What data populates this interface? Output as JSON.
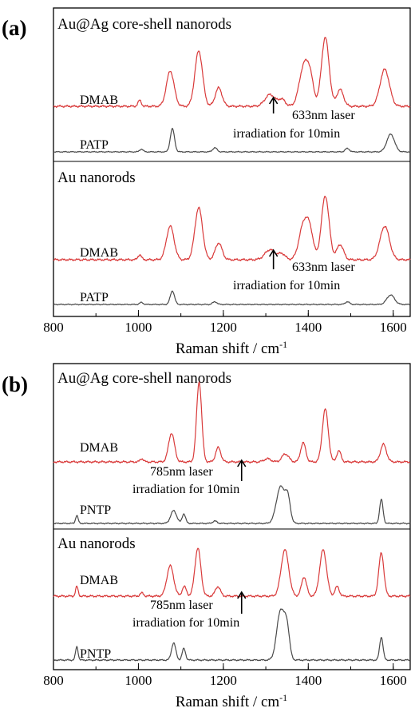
{
  "colors": {
    "dmab": "#d93a3a",
    "reference": "#4a4a4a",
    "axes": "#000000"
  },
  "chart_data": [
    {
      "type": "line",
      "panel_label": "(a)",
      "xlabel": "Raman shift / cm",
      "xlabel_sup": "-1",
      "xlim": [
        800,
        1640
      ],
      "x_ticks": [
        800,
        1000,
        1200,
        1400,
        1600
      ],
      "x_tick_labels": [
        "800",
        "1000",
        "1200",
        "1400",
        "1600"
      ],
      "grid": false,
      "subplots": [
        {
          "title": "Au@Ag core-shell nanorods",
          "series": [
            {
              "name": "DMAB",
              "role": "dmab",
              "peaks": [
                [
                  1003,
                  7,
                  4
                ],
                [
                  1075,
                  42,
                  9
                ],
                [
                  1142,
                  66,
                  9
                ],
                [
                  1189,
                  22,
                  8
                ],
                [
                  1310,
                  14,
                  12
                ],
                [
                  1338,
                  8,
                  8
                ],
                [
                  1390,
                  48,
                  11
                ],
                [
                  1405,
                  26,
                  8
                ],
                [
                  1440,
                  82,
                  9
                ],
                [
                  1475,
                  20,
                  8
                ],
                [
                  1580,
                  44,
                  11
                ]
              ]
            },
            {
              "name": "PATP",
              "role": "reference",
              "peaks": [
                [
                  1007,
                  4,
                  4
                ],
                [
                  1080,
                  34,
                  5
                ],
                [
                  1180,
                  6,
                  5
                ],
                [
                  1492,
                  5,
                  5
                ],
                [
                  1594,
                  26,
                  9
                ]
              ]
            }
          ],
          "annotation": {
            "lines": [
              "633nm laser",
              "irradiation for 10min"
            ],
            "arrow_x": 1318
          }
        },
        {
          "title": "Au nanorods",
          "series": [
            {
              "name": "DMAB",
              "role": "dmab",
              "peaks": [
                [
                  1003,
                  6,
                  4
                ],
                [
                  1075,
                  40,
                  9
                ],
                [
                  1142,
                  62,
                  9
                ],
                [
                  1189,
                  20,
                  8
                ],
                [
                  1310,
                  12,
                  12
                ],
                [
                  1338,
                  7,
                  8
                ],
                [
                  1390,
                  44,
                  11
                ],
                [
                  1405,
                  24,
                  8
                ],
                [
                  1440,
                  76,
                  9
                ],
                [
                  1475,
                  18,
                  8
                ],
                [
                  1580,
                  40,
                  11
                ]
              ]
            },
            {
              "name": "PATP",
              "role": "reference",
              "peaks": [
                [
                  1007,
                  3,
                  4
                ],
                [
                  1080,
                  20,
                  5
                ],
                [
                  1180,
                  4,
                  5
                ],
                [
                  1492,
                  4,
                  5
                ],
                [
                  1594,
                  14,
                  9
                ]
              ]
            }
          ],
          "annotation": {
            "lines": [
              "633nm laser",
              "irradiation for 10min"
            ],
            "arrow_x": 1318
          }
        }
      ]
    },
    {
      "type": "line",
      "panel_label": "(b)",
      "xlabel": "Raman shift / cm",
      "xlabel_sup": "-1",
      "xlim": [
        800,
        1640
      ],
      "x_ticks": [
        800,
        1000,
        1200,
        1400,
        1600
      ],
      "x_tick_labels": [
        "800",
        "1000",
        "1200",
        "1400",
        "1600"
      ],
      "grid": false,
      "subplots": [
        {
          "title": "Au@Ag core-shell nanorods",
          "series": [
            {
              "name": "DMAB",
              "role": "dmab",
              "peaks": [
                [
                  1008,
                  4,
                  4
                ],
                [
                  1078,
                  36,
                  7
                ],
                [
                  1143,
                  100,
                  6
                ],
                [
                  1188,
                  18,
                  6
                ],
                [
                  1304,
                  4,
                  8
                ],
                [
                  1346,
                  10,
                  8
                ],
                [
                  1388,
                  24,
                  6
                ],
                [
                  1440,
                  66,
                  7
                ],
                [
                  1472,
                  14,
                  5
                ],
                [
                  1577,
                  22,
                  7
                ]
              ]
            },
            {
              "name": "PNTP",
              "role": "reference",
              "peaks": [
                [
                  855,
                  10,
                  3
                ],
                [
                  1083,
                  16,
                  7
                ],
                [
                  1107,
                  12,
                  4
                ],
                [
                  1180,
                  3,
                  5
                ],
                [
                  1335,
                  46,
                  10
                ],
                [
                  1352,
                  28,
                  6
                ],
                [
                  1572,
                  30,
                  4
                ]
              ]
            }
          ],
          "annotation": {
            "lines": [
              "785nm laser",
              "irradiation for 10min"
            ],
            "arrow_x": 1243
          }
        },
        {
          "title": "Au nanorods",
          "series": [
            {
              "name": "DMAB",
              "role": "dmab",
              "peaks": [
                [
                  855,
                  12,
                  3
                ],
                [
                  1008,
                  4,
                  4
                ],
                [
                  1075,
                  38,
                  8
                ],
                [
                  1108,
                  12,
                  5
                ],
                [
                  1140,
                  60,
                  7
                ],
                [
                  1187,
                  12,
                  6
                ],
                [
                  1345,
                  58,
                  9
                ],
                [
                  1390,
                  24,
                  6
                ],
                [
                  1435,
                  58,
                  8
                ],
                [
                  1468,
                  12,
                  5
                ],
                [
                  1572,
                  54,
                  6
                ]
              ]
            },
            {
              "name": "PNTP",
              "role": "reference",
              "peaks": [
                [
                  855,
                  14,
                  3
                ],
                [
                  1083,
                  18,
                  5
                ],
                [
                  1107,
                  12,
                  4
                ],
                [
                  1335,
                  52,
                  9
                ],
                [
                  1350,
                  30,
                  6
                ],
                [
                  1572,
                  24,
                  4
                ]
              ]
            }
          ],
          "annotation": {
            "lines": [
              "785nm laser",
              "irradiation for 10min"
            ],
            "arrow_x": 1243
          }
        }
      ]
    }
  ]
}
